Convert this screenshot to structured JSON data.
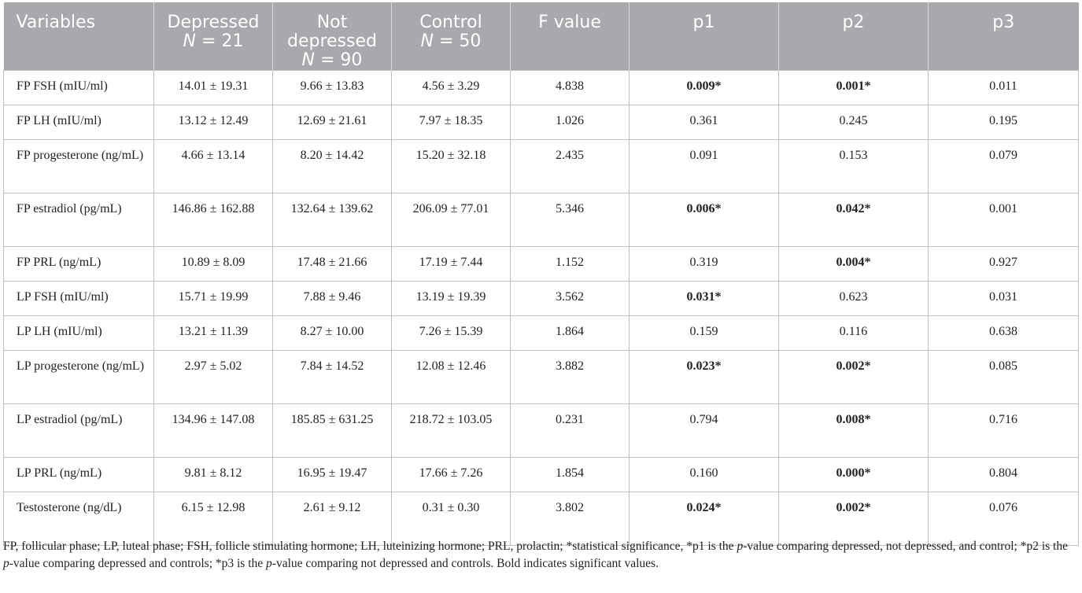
{
  "header": {
    "variables": "Variables",
    "depressed": {
      "line1": "Depressed",
      "n_label": "N",
      "n_value": " = 21"
    },
    "not_depressed": {
      "line1": "Not",
      "line2": "depressed",
      "n_label": "N",
      "n_value": " = 90"
    },
    "control": {
      "line1": "Control",
      "n_label": "N",
      "n_value": " = 50"
    },
    "f_value": "F value",
    "p1": "p1",
    "p2": "p2",
    "p3": "p3"
  },
  "rows": [
    {
      "variable": "FP FSH (mIU/ml)",
      "depressed": "14.01 ± 19.31",
      "not_depressed": "9.66 ± 13.83",
      "control": "4.56 ± 3.29",
      "f": "4.838",
      "p1": "0.009*",
      "p2": "0.001*",
      "p3": "0.011",
      "p1_sig": true,
      "p2_sig": true,
      "tall": false
    },
    {
      "variable": "FP LH (mIU/ml)",
      "depressed": "13.12 ± 12.49",
      "not_depressed": "12.69 ± 21.61",
      "control": "7.97 ± 18.35",
      "f": "1.026",
      "p1": "0.361",
      "p2": "0.245",
      "p3": "0.195",
      "p1_sig": false,
      "p2_sig": false,
      "tall": false
    },
    {
      "variable": "FP progesterone (ng/mL)",
      "depressed": "4.66 ± 13.14",
      "not_depressed": "8.20 ± 14.42",
      "control": "15.20 ± 32.18",
      "f": "2.435",
      "p1": "0.091",
      "p2": "0.153",
      "p3": "0.079",
      "p1_sig": false,
      "p2_sig": false,
      "tall": true
    },
    {
      "variable": "FP estradiol (pg/mL)",
      "depressed": "146.86 ± 162.88",
      "not_depressed": "132.64 ± 139.62",
      "control": "206.09 ± 77.01",
      "f": "5.346",
      "p1": "0.006*",
      "p2": "0.042*",
      "p3": "0.001",
      "p1_sig": true,
      "p2_sig": true,
      "tall": true
    },
    {
      "variable": "FP PRL (ng/mL)",
      "depressed": "10.89 ± 8.09",
      "not_depressed": "17.48 ± 21.66",
      "control": "17.19 ± 7.44",
      "f": "1.152",
      "p1": "0.319",
      "p2": "0.004*",
      "p3": "0.927",
      "p1_sig": false,
      "p2_sig": true,
      "tall": false
    },
    {
      "variable": "LP FSH (mIU/ml)",
      "depressed": "15.71 ± 19.99",
      "not_depressed": "7.88 ± 9.46",
      "control": "13.19 ± 19.39",
      "f": "3.562",
      "p1": "0.031*",
      "p2": "0.623",
      "p3": "0.031",
      "p1_sig": true,
      "p2_sig": false,
      "tall": false
    },
    {
      "variable": "LP LH (mIU/ml)",
      "depressed": "13.21 ± 11.39",
      "not_depressed": "8.27 ± 10.00",
      "control": "7.26 ± 15.39",
      "f": "1.864",
      "p1": "0.159",
      "p2": "0.116",
      "p3": "0.638",
      "p1_sig": false,
      "p2_sig": false,
      "tall": false
    },
    {
      "variable": "LP progesterone (ng/mL)",
      "depressed": "2.97 ± 5.02",
      "not_depressed": "7.84 ± 14.52",
      "control": "12.08 ± 12.46",
      "f": "3.882",
      "p1": "0.023*",
      "p2": "0.002*",
      "p3": "0.085",
      "p1_sig": true,
      "p2_sig": true,
      "tall": true
    },
    {
      "variable": "LP estradiol (pg/mL)",
      "depressed": "134.96 ± 147.08",
      "not_depressed": "185.85 ± 631.25",
      "control": "218.72 ± 103.05",
      "f": "0.231",
      "p1": "0.794",
      "p2": "0.008*",
      "p3": "0.716",
      "p1_sig": false,
      "p2_sig": true,
      "tall": true
    },
    {
      "variable": "LP PRL (ng/mL)",
      "depressed": "9.81 ± 8.12",
      "not_depressed": "16.95 ± 19.47",
      "control": "17.66 ± 7.26",
      "f": "1.854",
      "p1": "0.160",
      "p2": "0.000*",
      "p3": "0.804",
      "p1_sig": false,
      "p2_sig": true,
      "tall": false
    },
    {
      "variable": "Testosterone (ng/dL)",
      "depressed": "6.15 ± 12.98",
      "not_depressed": "2.61 ± 9.12",
      "control": "0.31 ± 0.30",
      "f": "3.802",
      "p1": "0.024*",
      "p2": "0.002*",
      "p3": "0.076",
      "p1_sig": true,
      "p2_sig": true,
      "tall": true
    }
  ],
  "footnote": {
    "part1": "FP, follicular phase; LP, luteal phase; FSH, follicle stimulating hormone; LH, luteinizing hormone; PRL, prolactin; *statistical significance, *p1 is the ",
    "p_a": "p",
    "part2": "-value comparing depressed, not depressed, and control; *p2 is the ",
    "p_b": "p",
    "part3": "-value comparing depressed and controls; *p3 is the ",
    "p_c": "p",
    "part4": "-value comparing not depressed and controls. Bold indicates significant values."
  },
  "colors": {
    "header_bg": "#a7a9ac",
    "header_text": "#ffffff",
    "border": "#bfbfbf",
    "text": "#231f20"
  }
}
